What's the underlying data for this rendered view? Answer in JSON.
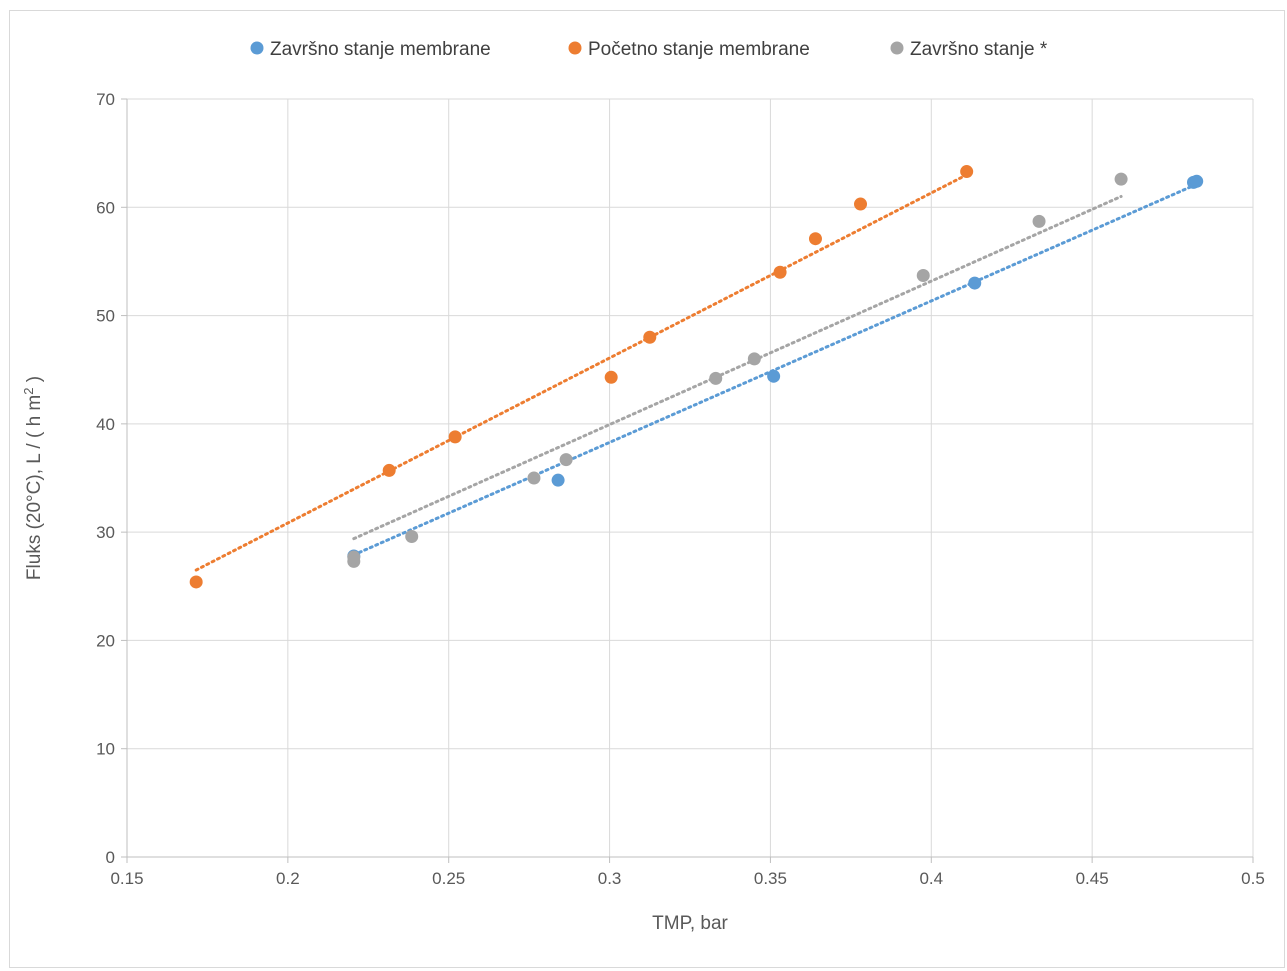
{
  "chart_data": {
    "type": "scatter",
    "title": "",
    "xlabel": "TMP, bar",
    "ylabel_parts": {
      "prefix": "Fluks (20°C), L / ( h m",
      "superscript": "2",
      "suffix": " )"
    },
    "xlim": [
      0.15,
      0.5
    ],
    "ylim": [
      0,
      70
    ],
    "x_ticks": [
      0.15,
      0.2,
      0.25,
      0.3,
      0.35,
      0.4,
      0.45,
      0.5
    ],
    "x_tick_labels": [
      "0.15",
      "0.2",
      "0.25",
      "0.3",
      "0.35",
      "0.4",
      "0.45",
      "0.5"
    ],
    "y_ticks": [
      0,
      10,
      20,
      30,
      40,
      50,
      60,
      70
    ],
    "y_tick_labels": [
      "0",
      "10",
      "20",
      "30",
      "40",
      "50",
      "60",
      "70"
    ],
    "grid": true,
    "legend_position": "top",
    "series": [
      {
        "name": "Završno stanje membrane",
        "color": "#5b9bd5",
        "x": [
          0.2205,
          0.284,
          0.351,
          0.4135,
          0.4815,
          0.4825
        ],
        "y": [
          27.8,
          34.8,
          44.4,
          53.0,
          62.3,
          62.4
        ],
        "trendline": {
          "x0": 0.2205,
          "y0": 27.9,
          "x1": 0.4815,
          "y1": 62.0
        }
      },
      {
        "name": "Početno stanje membrane",
        "color": "#ed7d31",
        "x": [
          0.1715,
          0.2315,
          0.252,
          0.3005,
          0.3125,
          0.353,
          0.364,
          0.378,
          0.411
        ],
        "y": [
          25.4,
          35.7,
          38.8,
          44.3,
          48.0,
          54.0,
          57.1,
          60.3,
          63.3
        ],
        "trendline": {
          "x0": 0.1715,
          "y0": 26.5,
          "x1": 0.411,
          "y1": 63.0
        }
      },
      {
        "name": "Završno stanje *",
        "color": "#a5a5a5",
        "x": [
          0.2205,
          0.2205,
          0.2385,
          0.2765,
          0.2865,
          0.333,
          0.345,
          0.3975,
          0.4335,
          0.459
        ],
        "y": [
          27.3,
          27.7,
          29.6,
          35.0,
          36.7,
          44.2,
          46.0,
          53.7,
          58.7,
          62.6
        ],
        "trendline": {
          "x0": 0.2205,
          "y0": 29.4,
          "x1": 0.459,
          "y1": 61.0
        }
      }
    ]
  }
}
